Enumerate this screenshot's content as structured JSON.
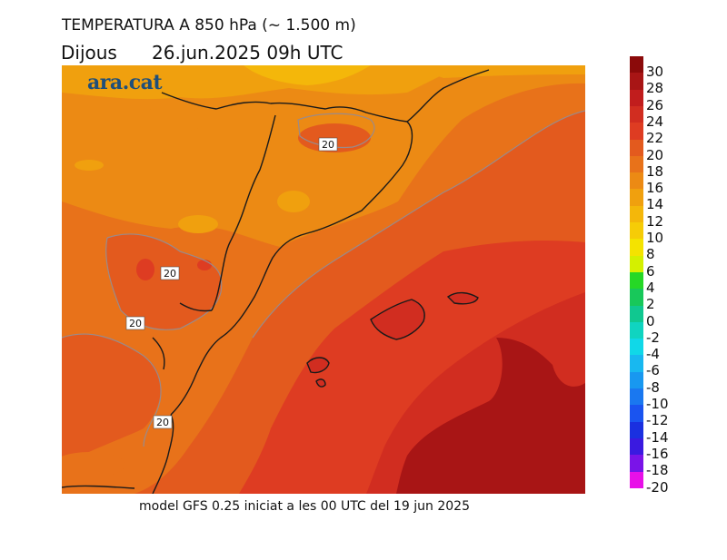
{
  "header": {
    "title": "TEMPERATURA A 850 hPa (~ 1.500 m)",
    "day": "Dijous",
    "datetime": "26.jun.2025 09h UTC"
  },
  "logo": {
    "text": "ara.cat",
    "color": "#1f4f7a"
  },
  "footer": {
    "model_text": "model GFS 0.25 iniciat a les 00 UTC del 19 jun 2025"
  },
  "map": {
    "contour_labels": [
      "20",
      "20",
      "20",
      "20"
    ]
  },
  "legend": {
    "labels": [
      "30",
      "28",
      "26",
      "24",
      "22",
      "20",
      "18",
      "16",
      "14",
      "12",
      "10",
      "8",
      "6",
      "4",
      "2",
      "0",
      "-2",
      "-4",
      "-6",
      "-8",
      "-10",
      "-12",
      "-14",
      "-16",
      "-18",
      "-20"
    ],
    "colors": [
      "#8b0a0a",
      "#a81515",
      "#c11d1d",
      "#d12d20",
      "#de3c22",
      "#e35a1e",
      "#e8721a",
      "#ec8a14",
      "#f0a00e",
      "#f4b70a",
      "#f6cc07",
      "#f4e300",
      "#d4f000",
      "#26d826",
      "#18c85a",
      "#10c890",
      "#10d4c0",
      "#10d8e8",
      "#18b8f0",
      "#1898f0",
      "#1a78f0",
      "#1a54f0",
      "#1a30e0",
      "#3a1ae0",
      "#7a14e8",
      "#e810e8"
    ]
  }
}
